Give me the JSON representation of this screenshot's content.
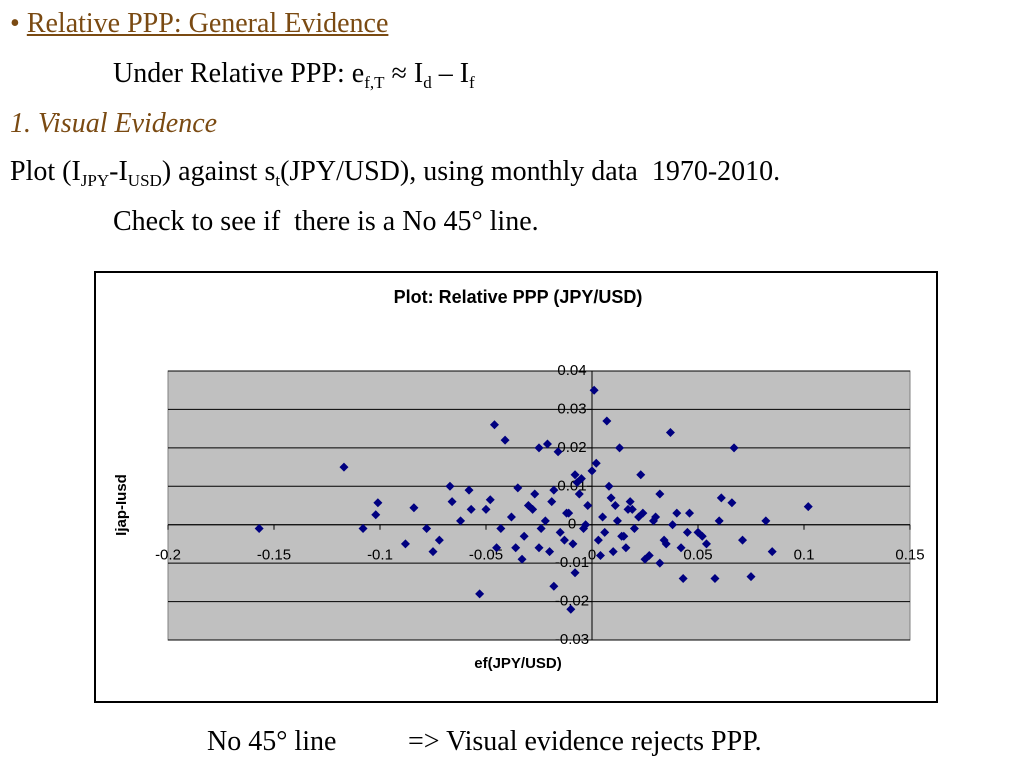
{
  "slide": {
    "bullet": "•",
    "title": "Relative PPP: General Evidence",
    "formula": [
      "Under Relative PPP: e",
      "f,T",
      " ≈ I",
      "d",
      " – I",
      "f"
    ],
    "section": "1. Visual Evidence",
    "plot_line": [
      "Plot (I",
      "JPY",
      "-I",
      "USD",
      ") against s",
      "t",
      "(JPY/USD), using monthly data  1970-2010."
    ],
    "check": "Check to see if  there is a No 45° line.",
    "conclusion": [
      "No 45° line",
      "=> Visual evidence rejects PPP."
    ]
  },
  "chart_data": {
    "type": "scatter",
    "title": "Plot: Relative PPP (JPY/USD)",
    "xlabel": "ef(JPY/USD)",
    "ylabel": "Ijap-Iusd",
    "xlim": [
      -0.2,
      0.15
    ],
    "xticks": [
      -0.2,
      -0.15,
      -0.1,
      -0.05,
      0,
      0.05,
      0.1,
      0.15
    ],
    "ylim": [
      -0.03,
      0.04
    ],
    "yticks": [
      -0.03,
      -0.02,
      -0.01,
      0,
      0.01,
      0.02,
      0.03,
      0.04
    ],
    "grid": true,
    "color": "#000080",
    "plot_background": "#c0c0c0",
    "x": [
      -0.157,
      -0.117,
      -0.108,
      -0.101,
      -0.102,
      -0.088,
      -0.084,
      -0.078,
      -0.075,
      -0.067,
      -0.072,
      -0.066,
      -0.058,
      -0.062,
      -0.057,
      -0.053,
      -0.046,
      -0.041,
      -0.048,
      -0.043,
      -0.035,
      -0.033,
      -0.025,
      -0.021,
      -0.016,
      0.001,
      0.007,
      0.013,
      -0.008,
      0.002,
      0,
      0.037,
      0.067,
      0.061,
      0.066,
      0.102,
      0.082,
      0.085,
      0.075,
      0.058,
      0.043,
      -0.01,
      -0.018,
      -0.008,
      0.032,
      0.023,
      0.017,
      0.032,
      -0.038,
      -0.032,
      -0.028,
      -0.025,
      -0.022,
      -0.019,
      -0.015,
      -0.012,
      -0.009,
      -0.006,
      -0.004,
      -0.002,
      0.003,
      0.005,
      0.008,
      0.01,
      0.012,
      0.015,
      0.018,
      0.02,
      0.024,
      0.027,
      0.03,
      0.034,
      0.038,
      0.042,
      0.046,
      0.05,
      0.054,
      -0.036,
      -0.03,
      -0.024,
      -0.018,
      -0.013,
      -0.007,
      -0.003,
      0.004,
      0.009,
      0.014,
      0.019,
      0.025,
      0.029,
      0.035,
      0.04,
      0.045,
      -0.027,
      -0.02,
      -0.011,
      -0.005,
      0.006,
      0.011,
      0.016,
      0.022,
      -0.045,
      -0.05,
      0.052,
      0.06,
      0.071
    ],
    "values": [
      -0.001,
      0.015,
      -0.001,
      0.0057,
      0.0026,
      -0.005,
      0.0044,
      -0.001,
      -0.007,
      0.01,
      -0.004,
      0.006,
      0.009,
      0.001,
      0.004,
      -0.018,
      0.026,
      0.022,
      0.0065,
      -0.001,
      0.0096,
      -0.009,
      0.02,
      0.021,
      0.019,
      0.035,
      0.027,
      0.02,
      0.013,
      0.016,
      0.014,
      0.024,
      0.02,
      0.007,
      0.0057,
      0.0047,
      0.001,
      -0.007,
      -0.0135,
      -0.014,
      -0.014,
      -0.022,
      -0.016,
      -0.0125,
      0.008,
      0.013,
      0.004,
      -0.01,
      0.002,
      -0.003,
      0.004,
      -0.006,
      0.001,
      0.006,
      -0.002,
      0.003,
      -0.005,
      0.008,
      -0.001,
      0.005,
      -0.004,
      0.002,
      0.01,
      -0.007,
      0.001,
      -0.003,
      0.006,
      -0.001,
      0.003,
      -0.008,
      0.002,
      -0.004,
      0.0,
      -0.006,
      0.003,
      -0.002,
      -0.005,
      -0.006,
      0.005,
      -0.001,
      0.009,
      -0.004,
      0.011,
      0.0,
      -0.008,
      0.007,
      -0.003,
      0.004,
      -0.009,
      0.001,
      -0.005,
      0.003,
      -0.002,
      0.008,
      -0.007,
      0.003,
      0.012,
      -0.002,
      0.005,
      -0.006,
      0.002,
      -0.006,
      0.004,
      -0.003,
      0.001,
      -0.004
    ]
  }
}
